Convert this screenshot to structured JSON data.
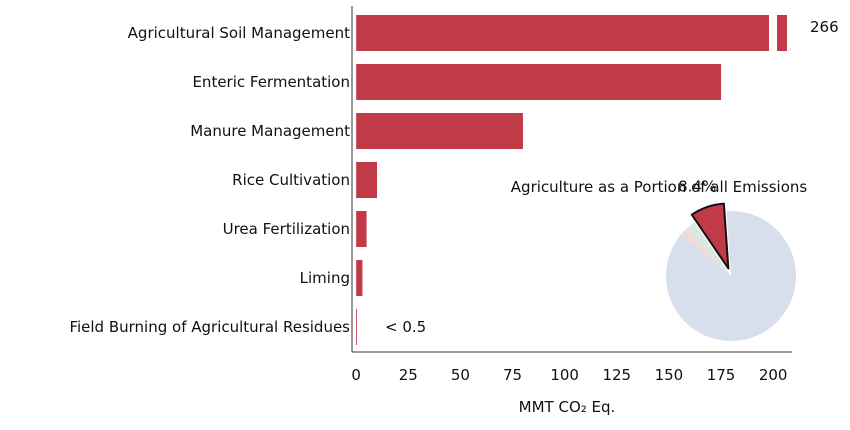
{
  "chart_data": [
    {
      "type": "bar",
      "orientation": "horizontal",
      "categories": [
        "Agricultural Soil Management",
        "Enteric Fermentation",
        "Manure Management",
        "Rice Cultivation",
        "Urea Fertilization",
        "Liming",
        "Field Burning of Agricultural Residues"
      ],
      "values": [
        266,
        175,
        80,
        10,
        5,
        3,
        0.4
      ],
      "data_labels": [
        "266",
        "",
        "",
        "",
        "",
        "",
        "< 0.5"
      ],
      "axis_break": {
        "from": 198,
        "to": 262,
        "note": "first bar is truncated with a gap and labeled with its value"
      },
      "xlabel": "MMT CO₂ Eq.",
      "ylabel": "",
      "xlim": [
        -2,
        205
      ],
      "xticks": [
        0,
        25,
        50,
        75,
        100,
        125,
        150,
        175,
        200
      ],
      "xtick_labels": [
        "0",
        "25",
        "50",
        "75",
        "100",
        "125",
        "150",
        "175",
        "200"
      ],
      "bar_color": "#c03a48",
      "grid": false,
      "legend": "none"
    },
    {
      "type": "pie",
      "title": "Agriculture as a Portion of all Emissions",
      "slices": [
        {
          "label": "8.4%",
          "value": 8.4,
          "color": "#c03a48",
          "exploded": true
        },
        {
          "label": "",
          "value": 3.2,
          "color": "#dde6e3"
        },
        {
          "label": "",
          "value": 1.2,
          "color": "#f5d8d6"
        },
        {
          "label": "",
          "value": 87.2,
          "color": "#d8dfec"
        }
      ],
      "start_angle_deg": -4,
      "legend": "none"
    }
  ]
}
